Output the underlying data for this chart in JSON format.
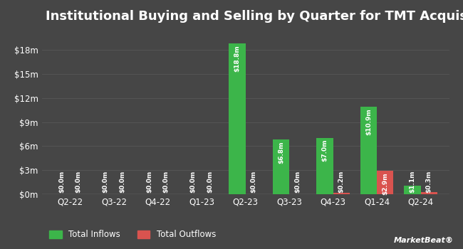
{
  "title": "Institutional Buying and Selling by Quarter for TMT Acquisition",
  "quarters": [
    "Q2-22",
    "Q3-22",
    "Q4-22",
    "Q1-23",
    "Q2-23",
    "Q3-23",
    "Q4-23",
    "Q1-24",
    "Q2-24"
  ],
  "inflows": [
    0.0,
    0.0,
    0.0,
    0.0,
    18.8,
    6.8,
    7.0,
    10.9,
    1.1
  ],
  "outflows": [
    0.0,
    0.0,
    0.0,
    0.0,
    0.0,
    0.0,
    0.2,
    2.9,
    0.3
  ],
  "inflow_labels": [
    "$0.0m",
    "$0.0m",
    "$0.0m",
    "$0.0m",
    "$18.8m",
    "$6.8m",
    "$7.0m",
    "$10.9m",
    "$1.1m"
  ],
  "outflow_labels": [
    "$0.0m",
    "$0.0m",
    "$0.0m",
    "$0.0m",
    "$0.0m",
    "$0.0m",
    "$0.2m",
    "$2.9m",
    "$0.3m"
  ],
  "inflow_color": "#3cb54a",
  "outflow_color": "#d9534f",
  "background_color": "#464646",
  "plot_bg_color": "#464646",
  "text_color": "#ffffff",
  "grid_color": "#575757",
  "yticks": [
    0,
    3,
    6,
    9,
    12,
    15,
    18
  ],
  "ytick_labels": [
    "$0m",
    "$3m",
    "$6m",
    "$9m",
    "$12m",
    "$15m",
    "$18m"
  ],
  "ylim": [
    0,
    20.5
  ],
  "bar_width": 0.38,
  "title_fontsize": 13,
  "label_fontsize": 6.5,
  "tick_fontsize": 8.5,
  "legend_fontsize": 8.5
}
